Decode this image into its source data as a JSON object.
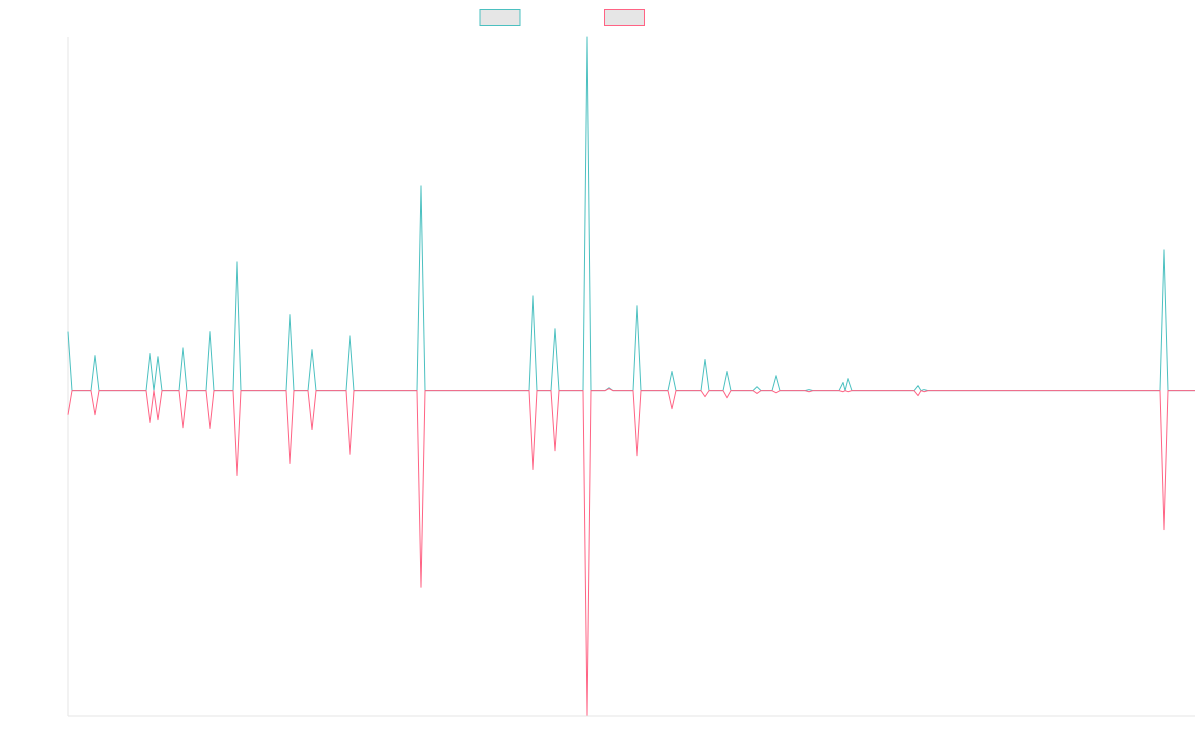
{
  "chart_data": {
    "type": "line",
    "x": [
      0,
      4,
      23,
      27,
      31,
      78,
      82,
      86,
      90,
      94,
      111,
      115,
      119,
      138,
      142,
      146,
      165,
      169,
      173,
      218,
      222,
      226,
      240,
      244,
      248,
      278,
      282,
      286,
      349,
      353,
      357,
      461,
      465,
      469,
      483,
      487,
      491,
      515,
      519,
      523,
      537,
      541,
      545,
      565,
      569,
      573,
      600,
      604,
      608,
      633,
      637,
      641,
      655,
      659,
      663,
      685,
      689,
      693,
      704,
      708,
      712,
      737,
      741,
      745,
      771,
      775,
      777,
      780,
      784,
      846,
      850,
      853,
      856,
      860,
      1092,
      1096,
      1100,
      1127
    ],
    "series": [
      {
        "color": "#4bc0c0",
        "values": [
          16.7,
          0,
          0,
          9.9,
          0,
          0,
          10.5,
          0,
          9.6,
          0,
          0,
          12.1,
          0,
          0,
          16.7,
          0,
          0,
          36.4,
          0,
          0,
          21.5,
          0,
          0,
          11.6,
          0,
          0,
          15.5,
          0,
          0,
          57.9,
          0,
          0,
          26.8,
          0,
          0,
          17.5,
          0,
          0,
          100,
          0,
          0,
          0.8,
          0,
          0,
          24,
          0,
          0,
          5.4,
          0,
          0,
          8.8,
          0,
          0,
          5.4,
          0,
          0,
          1.1,
          0,
          0,
          4.2,
          0,
          0,
          0.3,
          0,
          0,
          2.3,
          0,
          3.4,
          0,
          0,
          1.4,
          0,
          0.3,
          0,
          0,
          39.8,
          0,
          0
        ]
      },
      {
        "color": "#ff6384",
        "values": [
          -6.8,
          0,
          0,
          -6.8,
          0,
          0,
          -9,
          0,
          -8.2,
          0,
          0,
          -10.5,
          0,
          0,
          -10.7,
          0,
          0,
          -24,
          0,
          0,
          -20.6,
          0,
          0,
          -11,
          0,
          0,
          -18,
          0,
          0,
          -55.6,
          0,
          0,
          -22.3,
          0,
          0,
          -17,
          0,
          0,
          -91.8,
          0,
          0,
          0.6,
          0,
          0,
          -18.4,
          0,
          0,
          -5.1,
          0,
          0,
          -1.7,
          0,
          0,
          -2,
          0,
          0,
          -0.8,
          0,
          0,
          -0.6,
          0,
          0,
          -0.3,
          0,
          0,
          -0.3,
          0,
          -0.3,
          0,
          0,
          -1.4,
          0,
          -0.3,
          0,
          0,
          -39.3,
          0,
          0
        ]
      }
    ],
    "xlim": [
      0,
      1127
    ],
    "ylim": [
      -92,
      100
    ]
  }
}
